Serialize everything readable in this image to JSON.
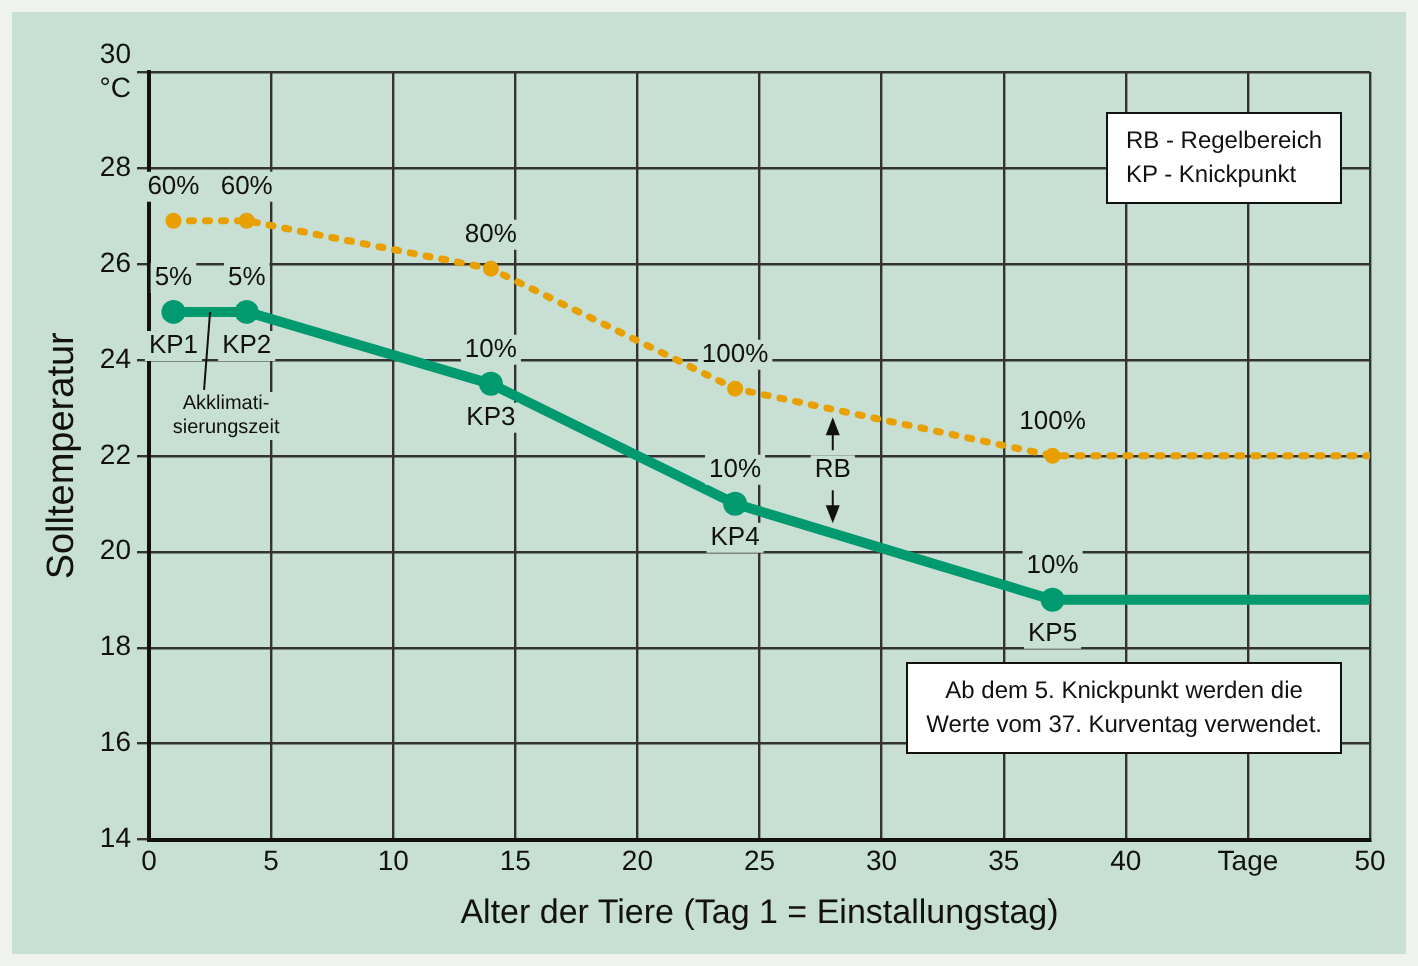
{
  "chart_data": {
    "type": "line",
    "xlabel": "Alter der Tiere (Tag 1 = Einstallungstag)",
    "ylabel": "Solltemperatur",
    "xlim": [
      0,
      50
    ],
    "xticks": [
      0,
      5,
      10,
      15,
      20,
      25,
      30,
      35,
      40,
      {
        "value": 45,
        "label": "Tage"
      },
      50
    ],
    "ylim": [
      14,
      30
    ],
    "yticks": [
      14,
      16,
      18,
      20,
      22,
      24,
      26,
      28,
      {
        "value": 30,
        "label": "30\n°C"
      }
    ],
    "grid": true,
    "legend": false,
    "marker": "circle",
    "series": [
      {
        "color": "#009a6e",
        "line_style": "solid",
        "x": [
          1,
          4,
          14,
          24,
          37,
          50
        ],
        "values": [
          25,
          25,
          23.5,
          21,
          19,
          19
        ]
      },
      {
        "color": "#e8a000",
        "line_style": "dotted",
        "x": [
          1,
          4,
          14,
          24,
          37,
          50
        ],
        "values": [
          26.9,
          26.9,
          25.9,
          23.4,
          22,
          22
        ]
      }
    ],
    "annotations": [
      "RB - Regelbereich\nKP - Knickpunkt",
      "Ab dem 5. Knickpunkt werden die\nWerte vom 37. Kurventag verwendet.",
      "RB",
      {
        "text": "Akklimati-\nsierungszeit",
        "x": 2.5,
        "y": 25
      },
      {
        "text": "5%",
        "x": 1,
        "y": 25
      },
      {
        "text": "KP1",
        "x": 1,
        "y": 25
      },
      {
        "text": "5%",
        "x": 4,
        "y": 25
      },
      {
        "text": "KP2",
        "x": 4,
        "y": 25
      },
      {
        "text": "10%",
        "x": 14,
        "y": 23.5
      },
      {
        "text": "KP3",
        "x": 14,
        "y": 23.5
      },
      {
        "text": "10%",
        "x": 24,
        "y": 21
      },
      {
        "text": "KP4",
        "x": 24,
        "y": 21
      },
      {
        "text": "10%",
        "x": 37,
        "y": 19
      },
      {
        "text": "KP5",
        "x": 37,
        "y": 19
      },
      {
        "text": "60%",
        "x": 1,
        "y": 26.9
      },
      {
        "text": "60%",
        "x": 4,
        "y": 26.9
      },
      {
        "text": "80%",
        "x": 14,
        "y": 25.9
      },
      {
        "text": "100%",
        "x": 24,
        "y": 23.4
      },
      {
        "text": "100%",
        "x": 37,
        "y": 22
      }
    ]
  }
}
